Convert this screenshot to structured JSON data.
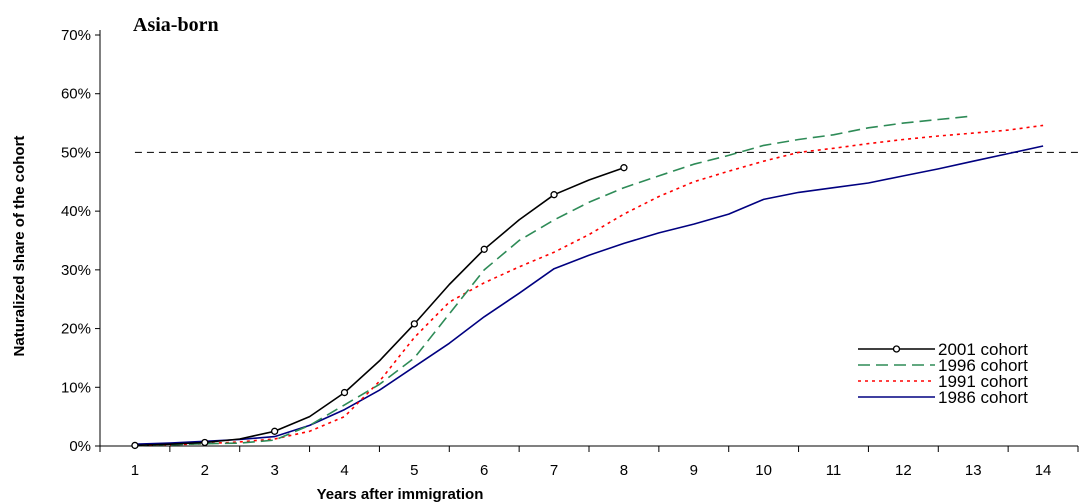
{
  "chart_data": {
    "type": "line",
    "title": "Asia-born",
    "xlabel": "Years after immigration",
    "ylabel": "Naturalized share of the cohort",
    "xlim": [
      0.5,
      14.5
    ],
    "ylim": [
      0,
      70
    ],
    "x_ticks": [
      "1",
      "2",
      "3",
      "4",
      "5",
      "6",
      "7",
      "8",
      "9",
      "10",
      "11",
      "12",
      "13",
      "14"
    ],
    "y_ticks": [
      "0%",
      "10%",
      "20%",
      "30%",
      "40%",
      "50%",
      "60%",
      "70%"
    ],
    "reference_line": 50,
    "legend_position": "bottom-right",
    "grid": false,
    "series": [
      {
        "name": "2001 cohort",
        "color": "#000000",
        "style": "solid-markers",
        "x": [
          1,
          1.5,
          2,
          2.5,
          3,
          3.5,
          4,
          4.5,
          5,
          5.5,
          6,
          6.5,
          7,
          7.5,
          8
        ],
        "y": [
          0.1,
          0.3,
          0.6,
          1.2,
          2.5,
          5.0,
          9.1,
          14.5,
          20.8,
          27.5,
          33.5,
          38.5,
          42.8,
          45.3,
          47.4
        ],
        "marker_x": [
          1,
          2,
          3,
          4,
          5,
          6,
          7,
          8
        ]
      },
      {
        "name": "1996 cohort",
        "color": "#2e8b57",
        "style": "dashed",
        "x": [
          1,
          1.5,
          2,
          2.5,
          3,
          3.5,
          4,
          4.5,
          5,
          5.5,
          6,
          6.5,
          7,
          7.5,
          8,
          8.5,
          9,
          9.5,
          10,
          10.5,
          11,
          11.5,
          12,
          12.5,
          13
        ],
        "y": [
          0.1,
          0.2,
          0.4,
          0.5,
          1.0,
          3.5,
          7.0,
          10.5,
          15.0,
          22.5,
          30.0,
          35.0,
          38.5,
          41.5,
          44.0,
          46.0,
          48.0,
          49.5,
          51.2,
          52.2,
          53.0,
          54.2,
          55.0,
          55.6,
          56.2
        ]
      },
      {
        "name": "1991 cohort",
        "color": "#ff0000",
        "style": "dotted",
        "x": [
          1,
          1.5,
          2,
          2.5,
          3,
          3.5,
          4,
          4.5,
          5,
          5.5,
          6,
          6.5,
          7,
          7.5,
          8,
          8.5,
          9,
          9.5,
          10,
          10.5,
          11,
          11.5,
          12,
          12.5,
          13,
          13.5,
          14
        ],
        "y": [
          0.1,
          0.2,
          0.4,
          0.7,
          1.2,
          2.5,
          5.0,
          11.0,
          18.5,
          24.5,
          27.8,
          30.5,
          33.0,
          36.0,
          39.5,
          42.5,
          45.0,
          46.8,
          48.5,
          50.0,
          50.7,
          51.5,
          52.2,
          52.8,
          53.3,
          53.8,
          54.6
        ]
      },
      {
        "name": "1986 cohort",
        "color": "#000080",
        "style": "solid",
        "x": [
          1,
          1.5,
          2,
          2.5,
          3,
          3.5,
          4,
          4.5,
          5,
          5.5,
          6,
          6.5,
          7,
          7.5,
          8,
          8.5,
          9,
          9.5,
          10,
          10.5,
          11,
          11.5,
          12,
          12.5,
          13,
          13.5,
          14
        ],
        "y": [
          0.3,
          0.5,
          0.8,
          1.1,
          1.6,
          3.5,
          6.2,
          9.5,
          13.5,
          17.5,
          22.0,
          26.0,
          30.2,
          32.5,
          34.5,
          36.3,
          37.8,
          39.5,
          42.0,
          43.2,
          44.0,
          44.8,
          46.0,
          47.2,
          48.5,
          49.8,
          51.1
        ]
      }
    ]
  }
}
